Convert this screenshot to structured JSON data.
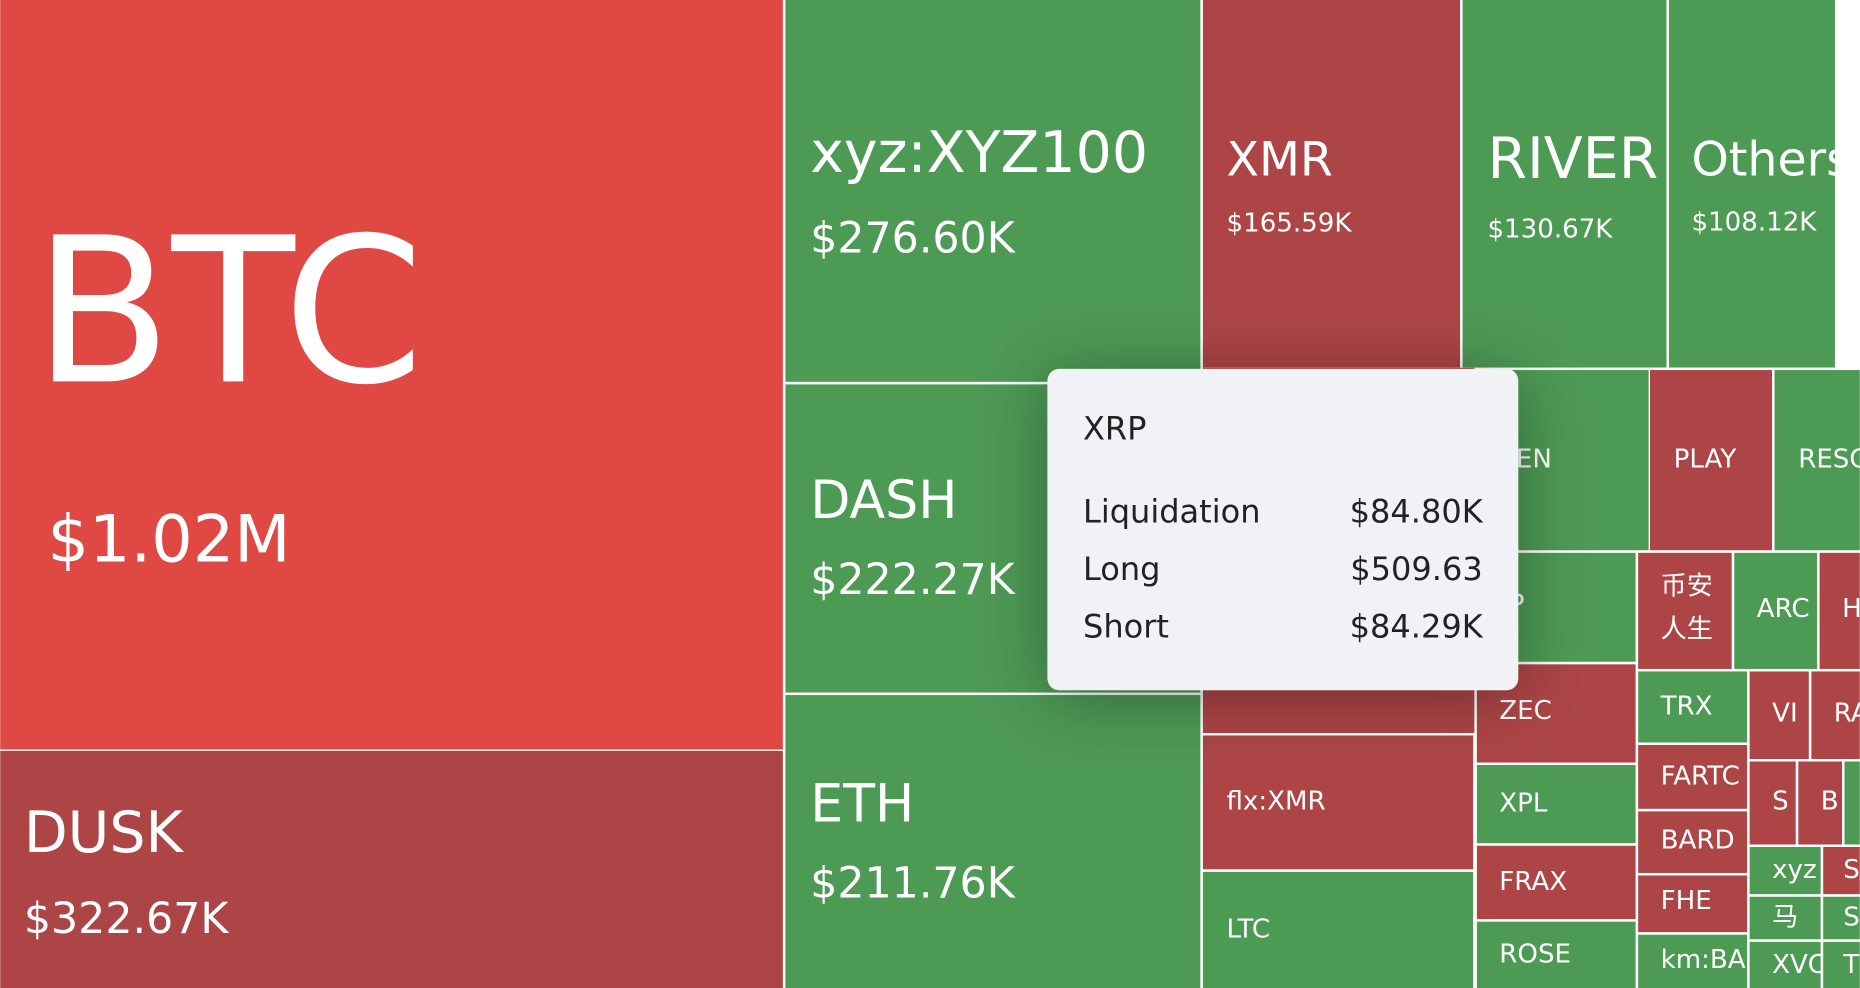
{
  "tiles": [
    {
      "label": "BTC",
      "value": "$1.02M",
      "color": "#e04844"
    },
    {
      "label": "DUSK",
      "value": "$322.67K",
      "color": "#ad4546"
    },
    {
      "label": "xyz:XYZ100",
      "value": "$276.60K",
      "color": "#4d9a55"
    },
    {
      "label": "XMR",
      "value": "$165.59K",
      "color": "#ad4546"
    },
    {
      "label": "RIVER",
      "value": "$130.67K",
      "color": "#4d9a55"
    },
    {
      "label": "Others",
      "value": "$108.12K",
      "color": "#4d9a55"
    },
    {
      "label": "DASH",
      "value": "$222.27K",
      "color": "#4d9a55"
    },
    {
      "label": "ETH",
      "value": "$211.76K",
      "color": "#4d9a55"
    },
    {
      "color": "#ad4546"
    },
    {
      "label": "flx:XMR",
      "color": "#ad4546"
    },
    {
      "label": "LTC",
      "color": "#4d9a55"
    },
    {
      "label": "EN",
      "color": "#4d9a55"
    },
    {
      "label": "PLAY",
      "color": "#ad4546"
    },
    {
      "label": "RESC",
      "color": "#4d9a55"
    },
    {
      "label": "P",
      "color": "#4d9a55"
    },
    {
      "label": "币安",
      "label2": "人生",
      "color": "#ad4546"
    },
    {
      "label": "ARC",
      "color": "#4d9a55"
    },
    {
      "label": "H",
      "color": "#ad4546"
    },
    {
      "label": "ZEC",
      "color": "#ad4546"
    },
    {
      "label": "XPL",
      "color": "#4d9a55"
    },
    {
      "label": "FRAX",
      "color": "#ad4546"
    },
    {
      "label": "ROSE",
      "color": "#4d9a55"
    },
    {
      "label": "TRX",
      "color": "#4d9a55"
    },
    {
      "label": "FARTC",
      "color": "#ad4546"
    },
    {
      "label": "BARD",
      "color": "#ad4546"
    },
    {
      "label": "FHE",
      "color": "#ad4546"
    },
    {
      "label": "km:BA",
      "color": "#4d9a55"
    },
    {
      "label": "VI",
      "color": "#ad4546"
    },
    {
      "label": "RA",
      "color": "#ad4546"
    },
    {
      "label": "S",
      "color": "#ad4546"
    },
    {
      "label": "B",
      "color": "#ad4546"
    },
    {
      "color": "#4d9a55"
    },
    {
      "label": "xyz",
      "color": "#4d9a55"
    },
    {
      "label": "S",
      "color": "#ad4546"
    },
    {
      "label": "马",
      "color": "#4d9a55"
    },
    {
      "label": "S",
      "color": "#4d9a55"
    },
    {
      "label": "XVC",
      "color": "#4d9a55"
    },
    {
      "label": "T",
      "color": "#4d9a55"
    }
  ],
  "tooltip": {
    "title": "XRP",
    "rows": [
      {
        "label": "Liquidation",
        "value": "$84.80K"
      },
      {
        "label": "Long",
        "value": "$509.63"
      },
      {
        "label": "Short",
        "value": "$84.29K"
      }
    ]
  }
}
